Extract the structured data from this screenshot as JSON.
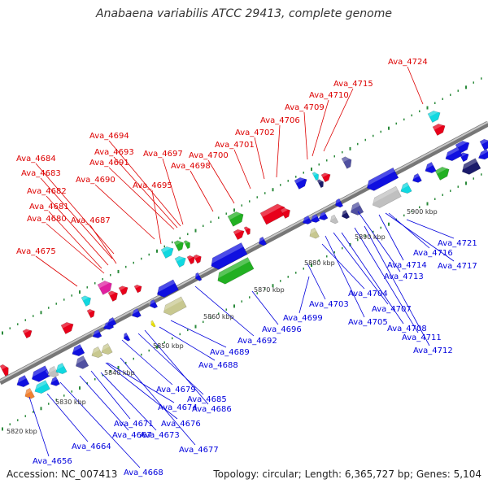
{
  "title": "Anabaena variabilis ATCC 29413, complete genome",
  "footer": {
    "accession": "Accession: NC_007413",
    "topology": "Topology: circular; Length: 6,365,727 bp; Genes: 5,104"
  },
  "scale_labels": [
    "5820 kbp",
    "5830 kbp",
    "5840 kbp",
    "5850 kbp",
    "5860 kbp",
    "5870 kbp",
    "5880 kbp",
    "5890 kbp",
    "5900 kbp"
  ],
  "colors": {
    "forward_label": "#dd0000",
    "reverse_label": "#0000dd",
    "backbone": "#999999",
    "tick": "#228833"
  },
  "forward_labels": [
    "Ava_4675",
    "Ava_4680",
    "Ava_4681",
    "Ava_4682",
    "Ava_4683",
    "Ava_4684",
    "Ava_4687",
    "Ava_4690",
    "Ava_4691",
    "Ava_4693",
    "Ava_4694",
    "Ava_4695",
    "Ava_4697",
    "Ava_4698",
    "Ava_4700",
    "Ava_4701",
    "Ava_4702",
    "Ava_4706",
    "Ava_4709",
    "Ava_4710",
    "Ava_4715",
    "Ava_4724"
  ],
  "reverse_labels": [
    "Ava_4656",
    "Ava_4664",
    "Ava_4667",
    "Ava_4668",
    "Ava_4671",
    "Ava_4673",
    "Ava_4674",
    "Ava_4676",
    "Ava_4677",
    "Ava_4679",
    "Ava_4685",
    "Ava_4686",
    "Ava_4688",
    "Ava_4689",
    "Ava_4692",
    "Ava_4696",
    "Ava_4699",
    "Ava_4703",
    "Ava_4704",
    "Ava_4705",
    "Ava_4707",
    "Ava_4708",
    "Ava_4711",
    "Ava_4712",
    "Ava_4713",
    "Ava_4714",
    "Ava_4716",
    "Ava_4717",
    "Ava_4721"
  ]
}
